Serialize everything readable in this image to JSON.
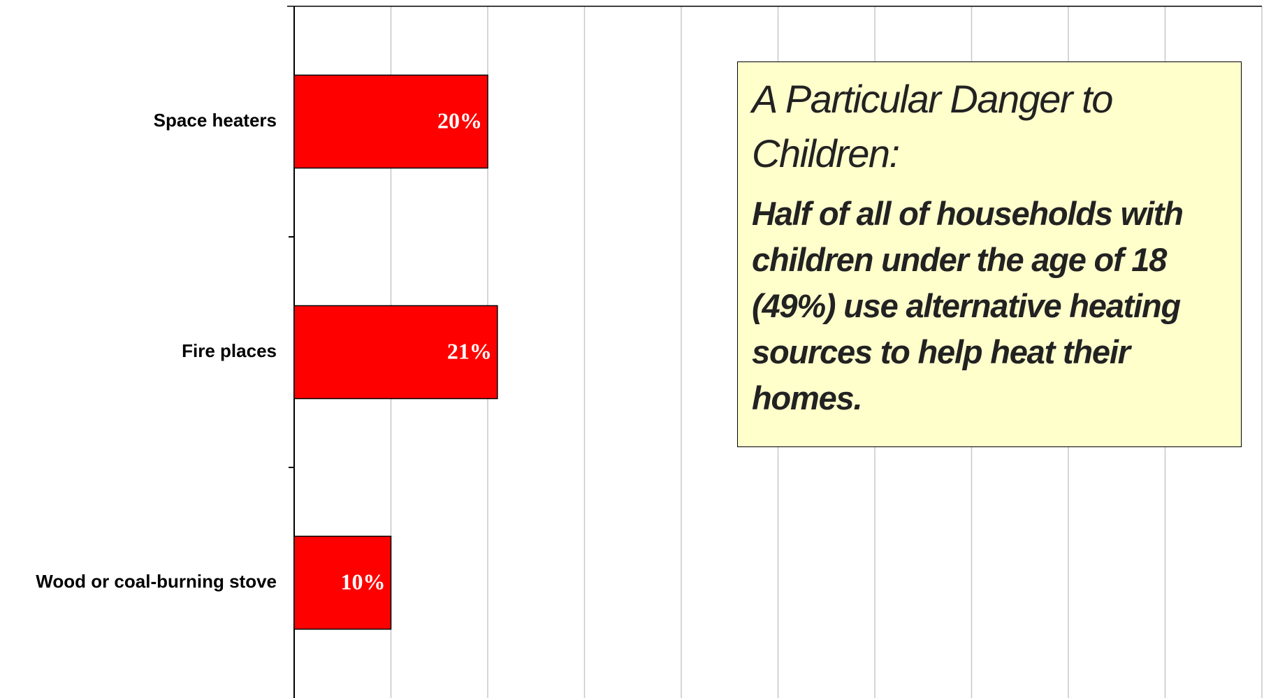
{
  "chart_data": {
    "type": "bar",
    "orientation": "horizontal",
    "categories": [
      "Space heaters",
      "Fire places",
      "Wood or coal-burning stove"
    ],
    "values": [
      20,
      21,
      10
    ],
    "value_labels": [
      "20%",
      "21%",
      "10%"
    ],
    "color": "#ff0000",
    "xlim": [
      0,
      100
    ],
    "xticks": [
      0,
      10,
      20,
      30,
      40,
      50,
      60,
      70,
      80,
      90,
      100
    ],
    "grid": true,
    "annotation_title": "A Particular Danger to Children:",
    "annotation": "Half of all of households with children under the age of 18 (49%) use alternative heating sources to help heat their homes."
  }
}
